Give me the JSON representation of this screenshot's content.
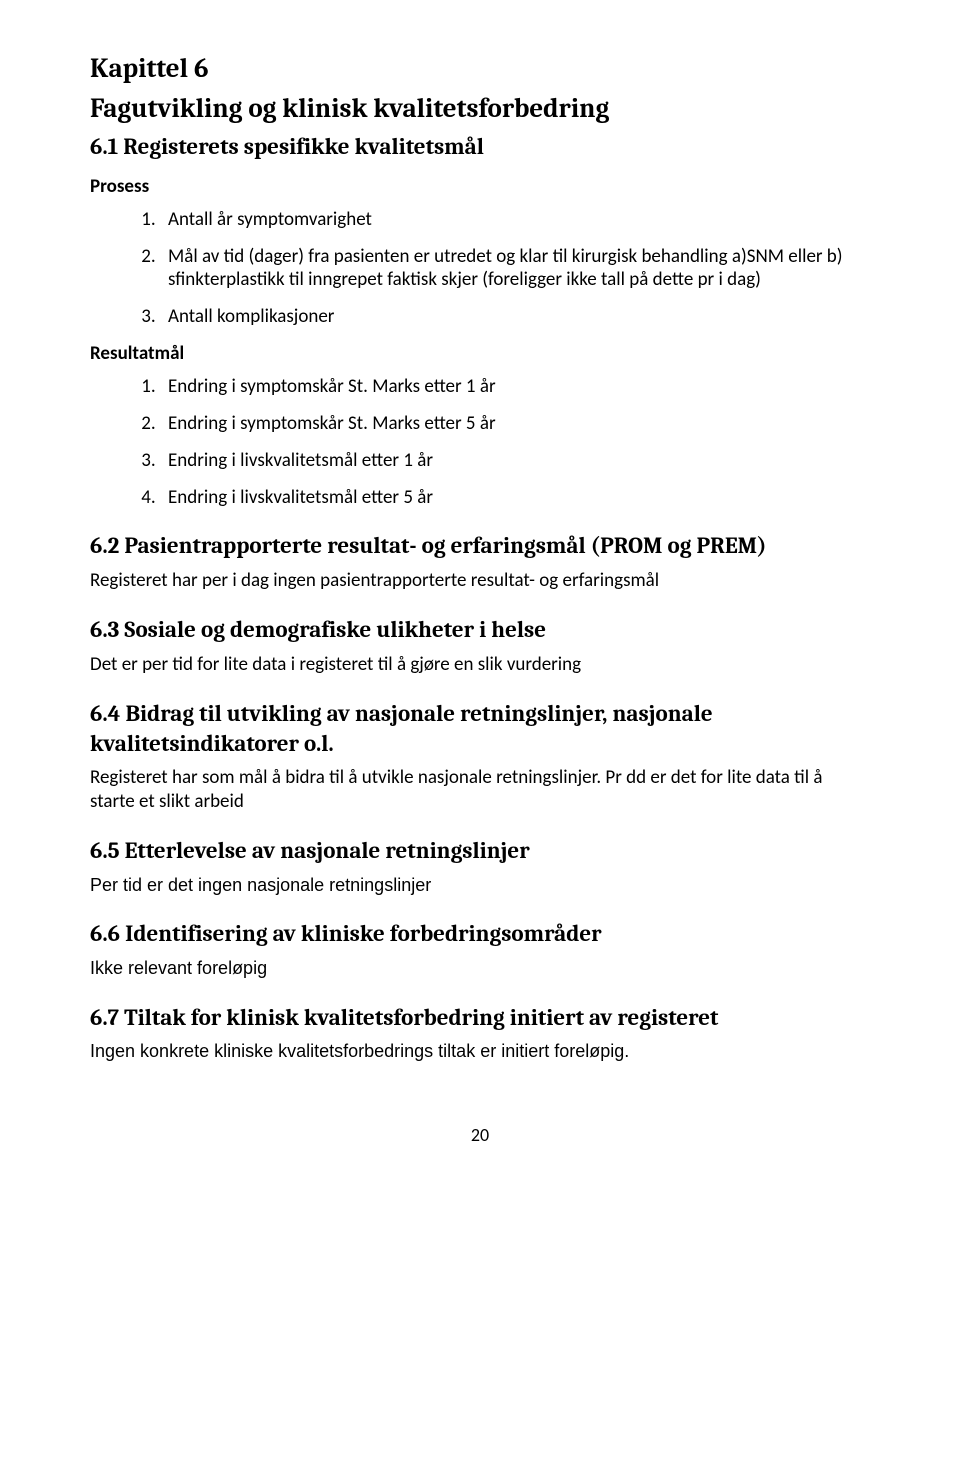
{
  "chapter": {
    "line1": "Kapittel 6",
    "line2": "Fagutvikling og klinisk kvalitetsforbedring"
  },
  "sections": {
    "s61": {
      "title": "6.1 Registerets spesifikke kvalitetsmål",
      "prosess_label": "Prosess",
      "prosess_items": [
        "Antall år symptomvarighet",
        "Mål av tid (dager) fra pasienten er utredet og klar til kirurgisk behandling a)SNM eller b) sfinkterplastikk til inngrepet faktisk skjer (foreligger ikke tall på dette pr i dag)",
        "Antall komplikasjoner"
      ],
      "resultatmal_label": "Resultatmål",
      "resultatmal_items": [
        "Endring i symptomskår St. Marks etter 1 år",
        "Endring i symptomskår St. Marks etter 5 år",
        "Endring i livskvalitetsmål etter 1 år",
        "Endring i livskvalitetsmål etter 5 år"
      ]
    },
    "s62": {
      "title": "6.2 Pasientrapporterte resultat- og erfaringsmål (PROM og PREM)",
      "text": "Registeret har per i dag ingen pasientrapporterte resultat- og erfaringsmål"
    },
    "s63": {
      "title": "6.3 Sosiale og demografiske ulikheter i helse",
      "text": "Det er per tid for lite data i registeret til å gjøre en slik vurdering"
    },
    "s64": {
      "title": "6.4 Bidrag til utvikling av nasjonale retningslinjer, nasjonale kvalitetsindikatorer o.l.",
      "text": "Registeret har som mål å bidra til å utvikle nasjonale retningslinjer. Pr dd er det for lite data til å starte et slikt arbeid"
    },
    "s65": {
      "title": "6.5 Etterlevelse av nasjonale retningslinjer",
      "text": "Per tid er det ingen nasjonale retningslinjer"
    },
    "s66": {
      "title": "6.6 Identifisering av kliniske forbedringsområder",
      "text": "Ikke relevant foreløpig"
    },
    "s67": {
      "title": "6.7 Tiltak for klinisk kvalitetsforbedring initiert av registeret",
      "text": "Ingen konkrete kliniske kvalitetsforbedrings tiltak er initiert foreløpig."
    }
  },
  "page_number": "20"
}
